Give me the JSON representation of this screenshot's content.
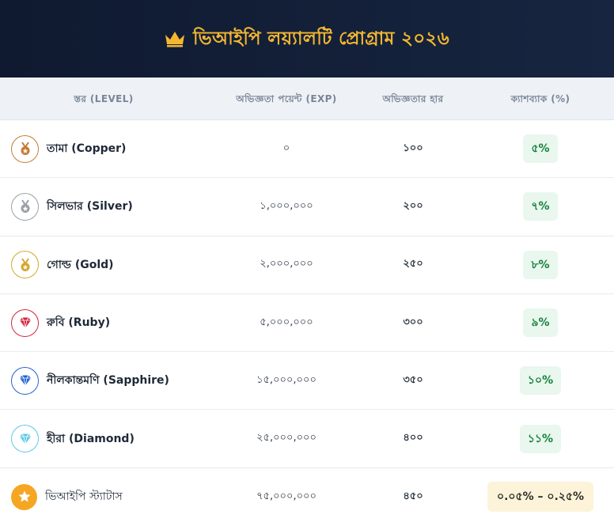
{
  "header": {
    "title": "ভিআইপি লয়্যালটি প্রোগ্রাম ২০২৬",
    "icon": "crown-icon"
  },
  "table": {
    "headers": [
      "স্তর (LEVEL)",
      "অভিজ্ঞতা পয়েন্ট (EXP)",
      "অভিজ্ঞতার হার",
      "ক্যাশব্যাক (%)"
    ],
    "rows": [
      {
        "icon": "copper-medal-icon",
        "name": "তামা (Copper)",
        "exp": "০",
        "rate": "১০০",
        "cashback": "৫%",
        "color": "#c77b36"
      },
      {
        "icon": "silver-medal-icon",
        "name": "সিলভার (Silver)",
        "exp": "১,০০০,০০০",
        "rate": "২০০",
        "cashback": "৭%",
        "color": "#9aa0a8"
      },
      {
        "icon": "gold-medal-icon",
        "name": "গোল্ড (Gold)",
        "exp": "২,০০০,০০০",
        "rate": "২৫০",
        "cashback": "৮%",
        "color": "#d4a72c"
      },
      {
        "icon": "ruby-gem-icon",
        "name": "রুবি (Ruby)",
        "exp": "৫,০০০,০০০",
        "rate": "৩০০",
        "cashback": "৯%",
        "color": "#d3263f"
      },
      {
        "icon": "sapphire-gem-icon",
        "name": "নীলকান্তমণি (Sapphire)",
        "exp": "১৫,০০০,০০০",
        "rate": "৩৫০",
        "cashback": "১০%",
        "color": "#2563d6"
      },
      {
        "icon": "diamond-gem-icon",
        "name": "হীরা (Diamond)",
        "exp": "২৫,০০০,০০০",
        "rate": "৪০০",
        "cashback": "১১%",
        "color": "#5cc9e8"
      },
      {
        "icon": "star-icon",
        "name": "ভিআইপি স্ট্যাটাস",
        "exp": "৭৫,০০০,০০০",
        "rate": "৪৫০",
        "cashback": "০.০৫% – ০.২৫%",
        "color": "#f5a623"
      }
    ]
  },
  "colors": {
    "header_bg": "#0f1a30",
    "title": "#f4b730",
    "cashback_bg": "#e9f7ee",
    "cashback_text": "#16803c",
    "vip_cashback_bg": "#fdf3d9"
  }
}
